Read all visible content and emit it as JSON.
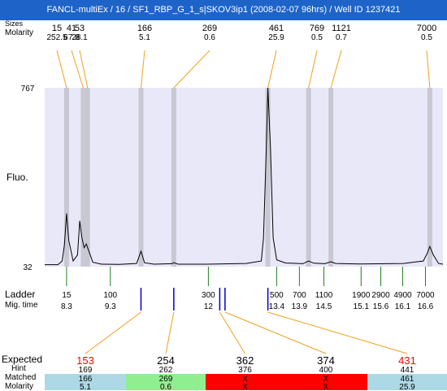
{
  "header": {
    "title": "FANCL-multiEx / 16 / SF1_RBP_G_1_s|SKOV3ip1 (2008-02-07 96hrs) / Well ID 1237421"
  },
  "labels": {
    "sizes": "Sizes",
    "molarity": "Molarity",
    "fluo": "Fluo.",
    "ladder": "Ladder",
    "mig_time": "Mig. time",
    "expected": "Expected",
    "hint": "Hint",
    "matched": "Matched",
    "molarity_table": "Molarity"
  },
  "chart_data": {
    "type": "line",
    "x_axis": "migration time",
    "x_range": [
      7.8,
      16.9
    ],
    "y_range": [
      32,
      767
    ],
    "y_ticks": [
      32,
      767
    ],
    "background_color": "#e8e8f8",
    "band_color": "#c8c8d2",
    "peaks": [
      {
        "size": "15",
        "molarity": "252.5",
        "mt": 8.3
      },
      {
        "size": "41",
        "molarity": "67.8",
        "mt": 8.68
      },
      {
        "size": "53",
        "molarity": "28.1",
        "mt": 8.78
      },
      {
        "size": "166",
        "molarity": "5.1",
        "mt": 10.0
      },
      {
        "size": "269",
        "molarity": "0.6",
        "mt": 10.75
      },
      {
        "size": "461",
        "molarity": "25.9",
        "mt": 12.9
      },
      {
        "size": "769",
        "molarity": "0.5",
        "mt": 13.83
      },
      {
        "size": "1121",
        "molarity": "0.7",
        "mt": 14.34
      },
      {
        "size": "7000",
        "molarity": "0.5",
        "mt": 16.6
      }
    ],
    "trace": [
      [
        7.8,
        40
      ],
      [
        8.1,
        40
      ],
      [
        8.2,
        55
      ],
      [
        8.25,
        120
      ],
      [
        8.3,
        250
      ],
      [
        8.35,
        140
      ],
      [
        8.45,
        55
      ],
      [
        8.55,
        80
      ],
      [
        8.6,
        220
      ],
      [
        8.65,
        150
      ],
      [
        8.7,
        110
      ],
      [
        8.75,
        125
      ],
      [
        8.82,
        90
      ],
      [
        8.9,
        50
      ],
      [
        9.1,
        42
      ],
      [
        9.5,
        41
      ],
      [
        9.9,
        45
      ],
      [
        10.0,
        95
      ],
      [
        10.08,
        48
      ],
      [
        10.3,
        42
      ],
      [
        10.7,
        44
      ],
      [
        10.75,
        48
      ],
      [
        10.85,
        42
      ],
      [
        11.5,
        42
      ],
      [
        12.4,
        45
      ],
      [
        12.75,
        55
      ],
      [
        12.8,
        150
      ],
      [
        12.86,
        500
      ],
      [
        12.9,
        767
      ],
      [
        12.96,
        520
      ],
      [
        13.02,
        150
      ],
      [
        13.1,
        60
      ],
      [
        13.3,
        47
      ],
      [
        13.7,
        44
      ],
      [
        13.83,
        55
      ],
      [
        13.95,
        46
      ],
      [
        14.2,
        44
      ],
      [
        14.34,
        52
      ],
      [
        14.45,
        45
      ],
      [
        15.0,
        43
      ],
      [
        15.6,
        44
      ],
      [
        16.0,
        45
      ],
      [
        16.45,
        55
      ],
      [
        16.55,
        90
      ],
      [
        16.6,
        115
      ],
      [
        16.68,
        80
      ],
      [
        16.8,
        45
      ],
      [
        16.9,
        42
      ]
    ],
    "ladder": [
      {
        "size": "15",
        "mt": "8.3",
        "pos": 8.3
      },
      {
        "size": "100",
        "mt": "9.3",
        "pos": 9.3
      },
      {
        "size": "300",
        "mt": "12",
        "pos": 11.54
      },
      {
        "size": "500",
        "mt": "13.4",
        "pos": 13.1
      },
      {
        "size": "700",
        "mt": "13.9",
        "pos": 13.62
      },
      {
        "size": "1100",
        "mt": "14.5",
        "pos": 14.18
      },
      {
        "size": "1900",
        "mt": "15.1",
        "pos": 15.03
      },
      {
        "size": "2900",
        "mt": "15.6",
        "pos": 15.48
      },
      {
        "size": "4900",
        "mt": "16.1",
        "pos": 15.98
      },
      {
        "size": "7000",
        "mt": "16.6",
        "pos": 16.5
      }
    ],
    "expected": [
      {
        "size": "153",
        "hint": "169",
        "matched": "166",
        "molarity": "5.1",
        "status": "low",
        "mark_pos": 10.0
      },
      {
        "size": "254",
        "hint": "262",
        "matched": "269",
        "molarity": "0.6",
        "status": "ok",
        "mark_pos": 10.75
      },
      {
        "size": "362",
        "hint": "376",
        "matched": "X",
        "molarity": "X",
        "status": "failed",
        "mark_pos": 11.8
      },
      {
        "size": "374",
        "hint": "400",
        "matched": "X",
        "molarity": "X",
        "status": "failed",
        "mark_pos": 11.92
      },
      {
        "size": "431",
        "hint": "441",
        "matched": "461",
        "molarity": "25.9",
        "status": "low",
        "mark_pos": 12.9
      }
    ],
    "status_colors": {
      "low": "#add8e6",
      "ok": "#90ee90",
      "failed": "#ff0000"
    },
    "highlight_color": "#ff0000"
  }
}
